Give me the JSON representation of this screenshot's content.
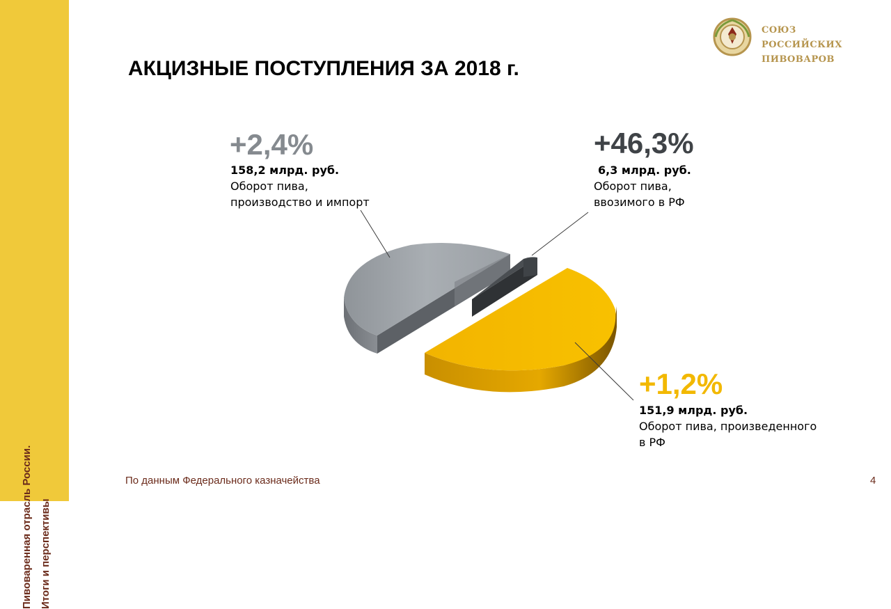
{
  "sidebar": {
    "line1": "Пивоваренная отрасль России.",
    "line2": "Итоги и перспективы"
  },
  "logo": {
    "line1": "СОЮЗ РОССИЙСКИХ",
    "line2": "ПИВОВАРОВ"
  },
  "title": "АКЦИЗНЫЕ ПОСТУПЛЕНИЯ ЗА 2018 г.",
  "footer": {
    "source": "По данным Федерального казначейства",
    "page": "4"
  },
  "colors": {
    "sidebar": "#f0c93a",
    "gray_series": "#9ea3a8",
    "dark_series": "#3f4347",
    "gold_series": "#f5b800",
    "brown_text": "#6b2b1b"
  },
  "chart_data": {
    "type": "pie",
    "title": "АКЦИЗНЫЕ ПОСТУПЛЕНИЯ ЗА 2018 г.",
    "unit": "млрд. руб.",
    "series": [
      {
        "name": "Оборот пива, производство и импорт",
        "value": 158.2,
        "value_label": "158,2 млрд. руб.",
        "change": "+2,4%",
        "desc_line1": "Оборот пива,",
        "desc_line2": "производство и импорт",
        "color": "#9ea3a8"
      },
      {
        "name": "Оборот пива, ввозимого в РФ",
        "value": 6.3,
        "value_label": "6,3 млрд. руб.",
        "change": "+46,3%",
        "desc_line1": "Оборот пива,",
        "desc_line2": "ввозимого в РФ",
        "color": "#3f4347"
      },
      {
        "name": "Оборот пива, произведенного в РФ",
        "value": 151.9,
        "value_label": "151,9 млрд. руб.",
        "change": "+1,2%",
        "desc_line1": "Оборот пива, произведенного",
        "desc_line2": "в РФ",
        "color": "#f5b800"
      }
    ]
  }
}
